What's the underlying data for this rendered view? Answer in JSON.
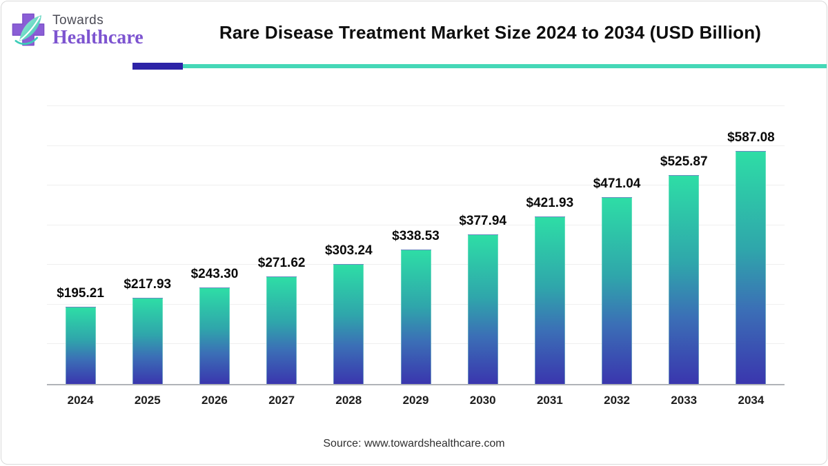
{
  "header": {
    "brand_top": "Towards",
    "brand_bottom": "Healthcare",
    "title": "Rare Disease Treatment Market Size 2024 to 2034 (USD Billion)"
  },
  "chart_data": {
    "type": "bar",
    "title": "Rare Disease Treatment Market Size 2024 to 2034 (USD Billion)",
    "xlabel": "",
    "ylabel": "",
    "categories": [
      "2024",
      "2025",
      "2026",
      "2027",
      "2028",
      "2029",
      "2030",
      "2031",
      "2032",
      "2033",
      "2034"
    ],
    "values": [
      195.21,
      217.93,
      243.3,
      271.62,
      303.24,
      338.53,
      377.94,
      421.93,
      471.04,
      525.87,
      587.08
    ],
    "labels": [
      "$195.21",
      "$217.93",
      "$243.30",
      "$271.62",
      "$303.24",
      "$338.53",
      "$377.94",
      "$421.93",
      "$471.04",
      "$525.87",
      "$587.08"
    ],
    "unit": "USD Billion",
    "ylim": [
      0,
      742
    ],
    "gridline_values": [
      100,
      200,
      300,
      400,
      500,
      600,
      700
    ],
    "grid": "horizontal-faint",
    "legend": "none",
    "bar_gradient": [
      "#2EDDA6",
      "#2FA6AB",
      "#3B6FB6",
      "#3A36AE"
    ]
  },
  "footer": {
    "source": "Source: www.towardshealthcare.com"
  },
  "colors": {
    "divider_indigo": "#2D23A7",
    "divider_teal": "#45D8B7",
    "logo_cross_purple": "#8A5ED6",
    "brand_purple": "#7D54D0",
    "brand_gray": "#4B4B55",
    "axis_line": "#B0B3B8",
    "gridline": "#EFEFEF",
    "title_text": "#0E0E0E"
  }
}
